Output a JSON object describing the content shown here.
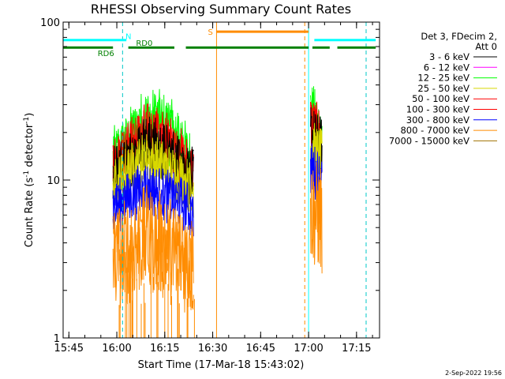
{
  "chart_data": {
    "type": "line",
    "title": "RHESSI Observing Summary Count Rates",
    "xlabel": "Start Time (17-Mar-18 15:43:02)",
    "ylabel_main": "Count Rate (s",
    "ylabel_sup1": "-1",
    "ylabel_mid": " detector",
    "ylabel_sup2": "-1",
    "ylabel_end": ")",
    "yscale": "log",
    "ylim": [
      1,
      100
    ],
    "xlim_minutes": [
      15.72,
      17.37
    ],
    "x_ticks": [
      "15:45",
      "16:00",
      "16:15",
      "16:30",
      "16:45",
      "17:00",
      "17:15"
    ],
    "x_tick_values": [
      15.75,
      16.0,
      16.25,
      16.5,
      16.75,
      17.0,
      17.25
    ],
    "y_ticks": [
      "1",
      "10",
      "100"
    ],
    "y_tick_values": [
      1,
      10,
      100
    ],
    "legend_header": [
      "Det 3, FDecim 2,",
      "Att 0"
    ],
    "legend_position": "right",
    "series": [
      {
        "name": "3 - 6 keV",
        "color": "#000000"
      },
      {
        "name": "6 - 12 keV",
        "color": "#ff00ff"
      },
      {
        "name": "12 - 25 keV",
        "color": "#00ff00"
      },
      {
        "name": "25 - 50 keV",
        "color": "#d8d800"
      },
      {
        "name": "50 - 100 keV",
        "color": "#ff0000"
      },
      {
        "name": "100 - 300 keV",
        "color": "#ff0000"
      },
      {
        "name": "300 - 800 keV",
        "color": "#0000ff"
      },
      {
        "name": "800 - 7000 keV",
        "color": "#ff8c00"
      },
      {
        "name": "7000 - 15000 keV",
        "color": "#a07000"
      }
    ],
    "band_profiles": [
      {
        "band": "6 - 12 keV",
        "color": "#00ff00",
        "segment1": [
          [
            15.98,
            13
          ],
          [
            16.05,
            16
          ],
          [
            16.15,
            24
          ],
          [
            16.25,
            22
          ],
          [
            16.35,
            15
          ],
          [
            16.4,
            12
          ]
        ],
        "segment2": [
          [
            17.01,
            26
          ],
          [
            17.04,
            22
          ],
          [
            17.07,
            20
          ]
        ]
      },
      {
        "band": "12 - 25 keV",
        "color": "#ff0000",
        "segment1": [
          [
            15.98,
            12
          ],
          [
            16.05,
            15
          ],
          [
            16.15,
            20
          ],
          [
            16.25,
            18
          ],
          [
            16.35,
            13
          ],
          [
            16.4,
            11
          ]
        ],
        "segment2": [
          [
            17.01,
            23
          ],
          [
            17.04,
            20
          ],
          [
            17.07,
            18
          ]
        ]
      },
      {
        "band": "3 - 6 keV",
        "color": "#000000",
        "segment1": [
          [
            15.98,
            11
          ],
          [
            16.05,
            13
          ],
          [
            16.15,
            17
          ],
          [
            16.25,
            15
          ],
          [
            16.35,
            12
          ],
          [
            16.4,
            10
          ]
        ],
        "segment2": [
          [
            17.01,
            20
          ],
          [
            17.04,
            17
          ],
          [
            17.07,
            16
          ]
        ]
      },
      {
        "band": "25 - 50 keV",
        "color": "#d8d800",
        "segment1": [
          [
            15.98,
            9
          ],
          [
            16.05,
            11
          ],
          [
            16.15,
            14
          ],
          [
            16.25,
            12
          ],
          [
            16.35,
            10
          ],
          [
            16.4,
            8.5
          ]
        ],
        "segment2": [
          [
            17.01,
            17
          ],
          [
            17.04,
            15
          ],
          [
            17.07,
            14
          ]
        ]
      },
      {
        "band": "50 - 100 keV",
        "color": "#0000ff",
        "segment1": [
          [
            15.98,
            6.5
          ],
          [
            16.05,
            7.5
          ],
          [
            16.15,
            9
          ],
          [
            16.25,
            8
          ],
          [
            16.35,
            7
          ],
          [
            16.4,
            6
          ]
        ],
        "segment2": [
          [
            17.01,
            12
          ],
          [
            17.04,
            11
          ],
          [
            17.07,
            10
          ]
        ]
      },
      {
        "band": "100 - 300 keV",
        "color": "#ff8c00",
        "segment1": [
          [
            15.98,
            3.2
          ],
          [
            16.05,
            3.5
          ],
          [
            16.15,
            4.2
          ],
          [
            16.25,
            3.8
          ],
          [
            16.35,
            3.2
          ],
          [
            16.4,
            2.8
          ]
        ],
        "segment2": [
          [
            17.01,
            6.5
          ],
          [
            17.04,
            6.0
          ],
          [
            17.07,
            5.5
          ]
        ]
      }
    ],
    "flags": {
      "N_label": "N",
      "RD0_label": "RD0",
      "RD6_label": "RD6",
      "S_label": "S",
      "N_level": 77,
      "RD0_level": 69,
      "S_level": 87,
      "N_segments": [
        [
          15.72,
          16.05
        ],
        [
          17.03,
          17.35
        ]
      ],
      "RD0_segments": [
        [
          15.72,
          15.98
        ],
        [
          16.06,
          16.3
        ],
        [
          16.36,
          17.0
        ],
        [
          17.02,
          17.11
        ],
        [
          17.15,
          17.35
        ]
      ],
      "S_segments": [
        [
          16.52,
          17.0
        ]
      ],
      "N_color": "#00ffff",
      "RD_color": "#008000",
      "S_color": "#ff8c00"
    },
    "vertical_lines": [
      {
        "x": 16.03,
        "color": "#00c8c8",
        "style": "dashed"
      },
      {
        "x": 16.52,
        "color": "#ff8c00",
        "style": "solid"
      },
      {
        "x": 16.98,
        "color": "#ff8c00",
        "style": "dashed"
      },
      {
        "x": 17.0,
        "color": "#00ffff",
        "style": "solid"
      },
      {
        "x": 17.3,
        "color": "#00c8c8",
        "style": "dashed"
      }
    ],
    "data_gap": [
      16.42,
      16.98
    ]
  },
  "timestamp": "2-Sep-2022 19:56"
}
